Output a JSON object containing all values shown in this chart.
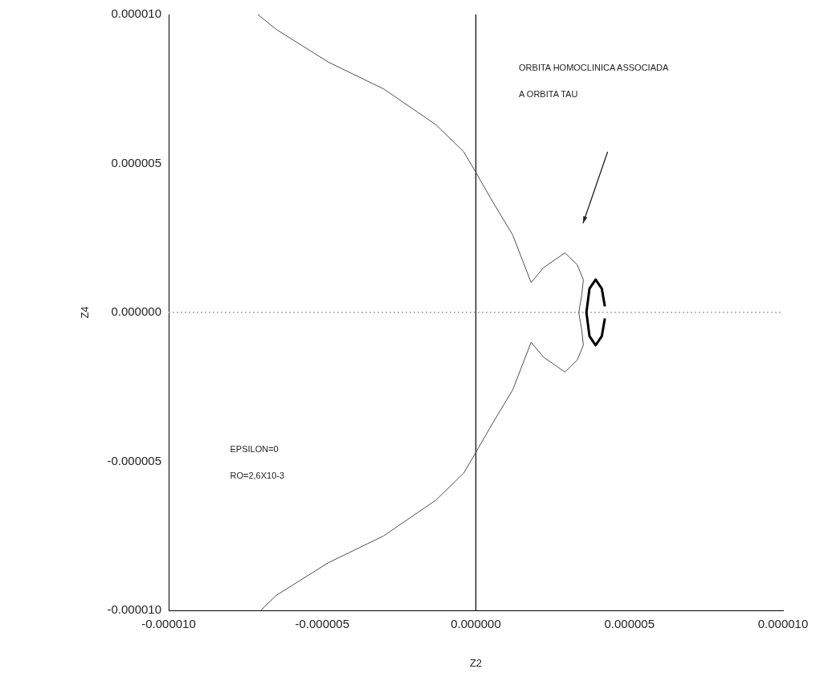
{
  "chart_data": {
    "type": "line",
    "xlabel": "Z2",
    "ylabel": "Z4",
    "annotations": [
      "ORBITA HOMOCLINICA ASSOCIADA",
      "A ORBITA TAU",
      "EPSILON=0",
      "RO=2,6X10-3"
    ],
    "xlim": [
      -1e-05,
      1e-05
    ],
    "xticks": [
      {
        "value": -1e-05,
        "label": "-0.000010"
      },
      {
        "value": -5e-06,
        "label": "-0.000005"
      },
      {
        "value": 0,
        "label": "0.000000"
      },
      {
        "value": 5e-06,
        "label": "0.000005"
      },
      {
        "value": 1e-05,
        "label": "0.000010"
      }
    ],
    "ylim": [
      -1e-05,
      1e-05
    ],
    "yticks": [
      {
        "value": -1e-05,
        "label": "-0.000010"
      },
      {
        "value": -5e-06,
        "label": "-0.000005"
      },
      {
        "value": 0,
        "label": "0.000000"
      },
      {
        "value": 5e-06,
        "label": "0.000005"
      },
      {
        "value": 1e-05,
        "label": "0.000010"
      }
    ],
    "grid": false,
    "legend": false,
    "marker": "none",
    "ref_lines": [
      {
        "axis": "x",
        "value": 0,
        "color": "#2a2a2a",
        "line_style": "solid"
      },
      {
        "axis": "y",
        "value": 0,
        "color": "#a8a8a8",
        "line_style": "dotted"
      }
    ],
    "series": [
      {
        "color": "#505050",
        "x": [
          -7.1e-06,
          -6.5e-06,
          -4.8e-06,
          -3e-06,
          -1.3e-06,
          -4e-07,
          0,
          5e-07,
          1.2e-06,
          1.8e-06,
          2.2e-06,
          2.9e-06,
          3.3e-06,
          3.5e-06,
          3.45e-06,
          3.35e-06,
          3.45e-06,
          3.5e-06,
          3.3e-06,
          2.9e-06,
          2.2e-06,
          1.8e-06,
          1.2e-06,
          5e-07,
          0,
          -4e-07,
          -1.3e-06,
          -3e-06,
          -4.8e-06,
          -6.5e-06,
          -7e-06
        ],
        "values": [
          1e-05,
          9.5e-06,
          8.4e-06,
          7.5e-06,
          6.3e-06,
          5.4e-06,
          4.7e-06,
          3.8e-06,
          2.6e-06,
          1e-06,
          1.5e-06,
          2e-06,
          1.6e-06,
          1.1e-06,
          6e-07,
          0,
          -6e-07,
          -1.1e-06,
          -1.6e-06,
          -2e-06,
          -1.5e-06,
          -1e-06,
          -2.6e-06,
          -3.8e-06,
          -4.7e-06,
          -5.4e-06,
          -6.3e-06,
          -7.5e-06,
          -8.4e-06,
          -9.5e-06,
          -1e-05
        ]
      },
      {
        "color": "#000000",
        "x": [
          4.2e-06,
          4.1e-06,
          3.9e-06,
          3.7e-06,
          3.6e-06,
          3.7e-06,
          3.9e-06,
          4.1e-06,
          4.2e-06
        ],
        "values": [
          2e-07,
          8e-07,
          1.1e-06,
          8e-07,
          0,
          -8e-07,
          -1.1e-06,
          -8e-07,
          -2e-07
        ]
      }
    ]
  }
}
